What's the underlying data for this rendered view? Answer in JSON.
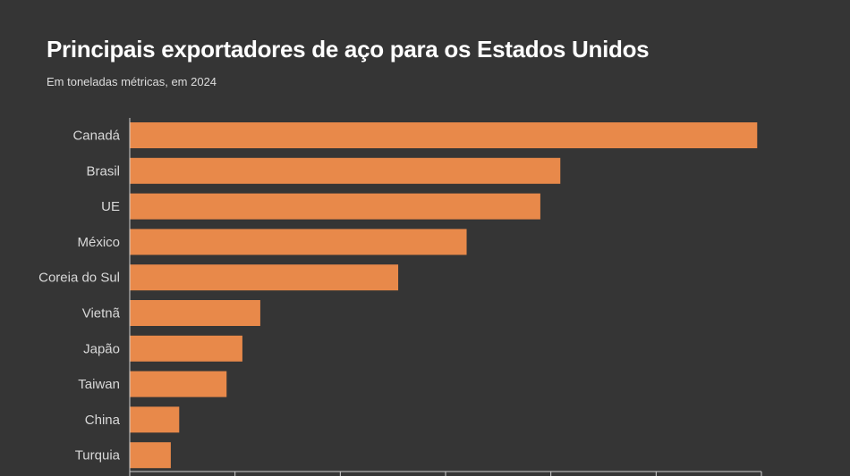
{
  "chart_data": {
    "type": "bar",
    "orientation": "horizontal",
    "title": "Principais exportadores de aço para os Estados Unidos",
    "subtitle": "Em toneladas métricas, em 2024",
    "categories": [
      "Canadá",
      "Brasil",
      "UE",
      "México",
      "Coreia do Sul",
      "Vietnã",
      "Japão",
      "Taiwan",
      "China",
      "Turquia"
    ],
    "values": [
      5960000,
      4090000,
      3900000,
      3200000,
      2550000,
      1240000,
      1070000,
      920000,
      470000,
      390000
    ],
    "xlim": [
      0,
      6000000
    ],
    "xticks": [
      0,
      1000000,
      2000000,
      3000000,
      4000000,
      5000000,
      6000000
    ],
    "grid": false,
    "bar_color": "#e8894a",
    "background": "#353535"
  }
}
